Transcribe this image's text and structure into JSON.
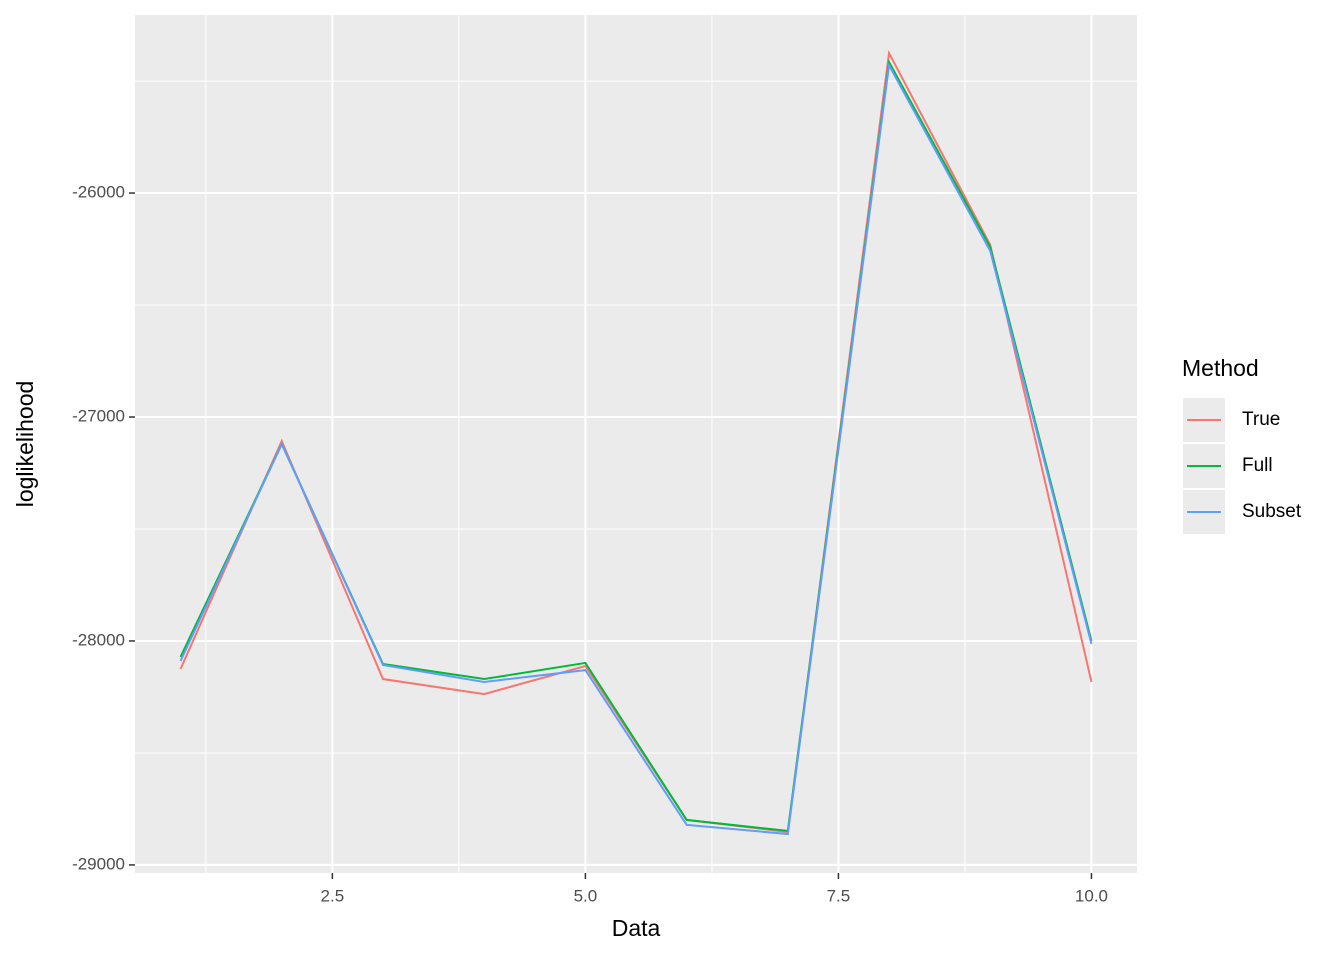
{
  "chart_data": {
    "type": "line",
    "x_label": "Data",
    "y_label": "loglikelihood",
    "x": [
      1,
      2,
      3,
      4,
      5,
      6,
      7,
      8,
      9,
      10
    ],
    "series": [
      {
        "name": "True",
        "color": "#F8766D",
        "values": [
          -28125,
          -27107,
          -28170,
          -28237,
          -28112,
          -28799,
          -28853,
          -25375,
          -26232,
          -28183
        ]
      },
      {
        "name": "Full",
        "color": "#00BA38",
        "values": [
          -28071,
          -27121,
          -28103,
          -28170,
          -28098,
          -28799,
          -28848,
          -25415,
          -26241,
          -28000
        ]
      },
      {
        "name": "Subset",
        "color": "#619CFF",
        "values": [
          -28089,
          -27121,
          -28107,
          -28183,
          -28130,
          -28821,
          -28862,
          -25429,
          -26259,
          -28013
        ]
      }
    ],
    "xlim": [
      0.55,
      10.45
    ],
    "ylim": [
      -29036,
      -25205
    ],
    "xticks": [
      2.5,
      {
        "value": 5,
        "label": "5.0"
      },
      7.5,
      {
        "value": 10,
        "label": "10.0"
      }
    ],
    "yticks": [
      -29000,
      -28000,
      -27000,
      -26000
    ],
    "grid": true,
    "legend_title": "Method",
    "legend_position": "right"
  }
}
